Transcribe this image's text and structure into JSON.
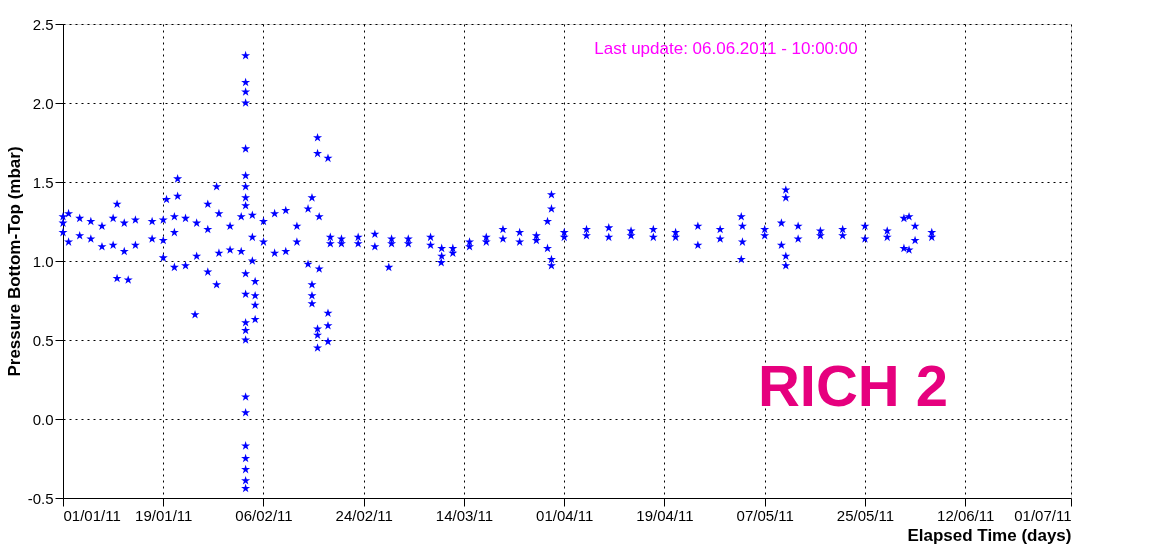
{
  "chart_data": {
    "type": "scatter",
    "xlabel": "Elapsed Time (days)",
    "ylabel": "Pressure Bottom-Top (mbar)",
    "annotations": [
      "Last update: 06.06.2011 - 10:00:00",
      "RICH 2"
    ],
    "xlim": [
      "2011-01-01",
      "2011-07-01"
    ],
    "xticks": [
      {
        "value": "2011-01-01",
        "label": "01/01/11"
      },
      {
        "value": "2011-01-19",
        "label": "19/01/11"
      },
      {
        "value": "2011-02-06",
        "label": "06/02/11"
      },
      {
        "value": "2011-02-24",
        "label": "24/02/11"
      },
      {
        "value": "2011-03-14",
        "label": "14/03/11"
      },
      {
        "value": "2011-04-01",
        "label": "01/04/11"
      },
      {
        "value": "2011-04-19",
        "label": "19/04/11"
      },
      {
        "value": "2011-05-07",
        "label": "07/05/11"
      },
      {
        "value": "2011-05-25",
        "label": "25/05/11"
      },
      {
        "value": "2011-06-12",
        "label": "12/06/11"
      },
      {
        "value": "2011-07-01",
        "label": "01/07/11"
      }
    ],
    "ylim": [
      -0.5,
      2.5
    ],
    "yticks": [
      {
        "value": -0.5,
        "label": "-0.5"
      },
      {
        "value": 0,
        "label": "0.0"
      },
      {
        "value": 0.5,
        "label": "0.5"
      },
      {
        "value": 1,
        "label": "1.0"
      },
      {
        "value": 1.5,
        "label": "1.5"
      },
      {
        "value": 2,
        "label": "2.0"
      },
      {
        "value": 2.5,
        "label": "2.5"
      }
    ],
    "grid": true,
    "marker": "star",
    "legend": false,
    "series": [
      {
        "color": "#0000ff",
        "x": [
          "2011-01-01",
          "2011-01-01",
          "2011-01-01",
          "2011-01-02",
          "2011-01-02",
          "2011-01-04",
          "2011-01-04",
          "2011-01-06",
          "2011-01-06",
          "2011-01-08",
          "2011-01-08",
          "2011-01-10",
          "2011-01-10",
          "2011-01-12",
          "2011-01-12",
          "2011-01-14",
          "2011-01-14",
          "2011-01-17",
          "2011-01-17",
          "2011-01-19",
          "2011-01-19",
          "2011-01-19",
          "2011-01-21",
          "2011-01-21",
          "2011-01-21",
          "2011-01-23",
          "2011-01-23",
          "2011-01-25",
          "2011-01-25",
          "2011-01-27",
          "2011-01-27",
          "2011-01-27",
          "2011-01-29",
          "2011-01-29",
          "2011-01-31",
          "2011-01-31",
          "2011-02-02",
          "2011-02-02",
          "2011-02-04",
          "2011-02-04",
          "2011-02-04",
          "2011-02-06",
          "2011-02-06",
          "2011-02-08",
          "2011-02-08",
          "2011-02-10",
          "2011-02-10",
          "2011-02-12",
          "2011-02-12",
          "2011-02-14",
          "2011-02-14",
          "2011-02-16",
          "2011-02-16",
          "2011-02-18",
          "2011-02-18",
          "2011-02-20",
          "2011-02-20",
          "2011-02-23",
          "2011-02-23",
          "2011-02-26",
          "2011-02-26",
          "2011-03-01",
          "2011-03-01",
          "2011-03-04",
          "2011-03-04",
          "2011-03-08",
          "2011-03-08",
          "2011-03-10",
          "2011-03-10",
          "2011-03-12",
          "2011-03-12",
          "2011-03-15",
          "2011-03-15",
          "2011-03-18",
          "2011-03-18",
          "2011-03-21",
          "2011-03-21",
          "2011-03-24",
          "2011-03-24",
          "2011-03-27",
          "2011-03-27",
          "2011-03-29",
          "2011-03-29",
          "2011-04-01",
          "2011-04-01",
          "2011-04-05",
          "2011-04-05",
          "2011-04-09",
          "2011-04-09",
          "2011-04-13",
          "2011-04-13",
          "2011-04-17",
          "2011-04-17",
          "2011-04-21",
          "2011-04-21",
          "2011-04-25",
          "2011-04-25",
          "2011-04-29",
          "2011-04-29",
          "2011-05-03",
          "2011-05-03",
          "2011-05-07",
          "2011-05-07",
          "2011-05-10",
          "2011-05-10",
          "2011-05-13",
          "2011-05-13",
          "2011-05-17",
          "2011-05-17",
          "2011-05-21",
          "2011-05-21",
          "2011-05-25",
          "2011-05-25",
          "2011-05-29",
          "2011-05-29",
          "2011-06-01",
          "2011-06-01",
          "2011-06-03",
          "2011-06-03",
          "2011-06-06",
          "2011-06-06",
          "2011-01-10T17:00",
          "2011-01-10T17:00",
          "2011-01-12T17:00",
          "2011-01-19T14:00",
          "2011-01-21T14:00",
          "2011-01-21T14:00",
          "2011-01-24T17:00",
          "2011-01-28T14:00",
          "2011-01-28T14:00",
          "2011-02-02T19:00",
          "2011-02-02T19:00",
          "2011-02-02T19:00",
          "2011-02-02T19:00",
          "2011-02-02T19:00",
          "2011-02-02T19:00",
          "2011-02-02T19:00",
          "2011-02-02T19:00",
          "2011-02-02T19:00",
          "2011-02-02T19:00",
          "2011-02-02T19:00",
          "2011-02-02T19:00",
          "2011-02-02T19:00",
          "2011-02-02T19:00",
          "2011-02-02T19:00",
          "2011-02-02T19:00",
          "2011-02-02T19:00",
          "2011-02-02T19:00",
          "2011-02-02T19:00",
          "2011-02-02T19:00",
          "2011-02-02T19:00",
          "2011-02-04T12:00",
          "2011-02-04T12:00",
          "2011-02-04T12:00",
          "2011-02-04T12:00",
          "2011-02-14T17:00",
          "2011-02-14T17:00",
          "2011-02-14T17:00",
          "2011-02-14T17:00",
          "2011-02-15T17:00",
          "2011-02-15T17:00",
          "2011-02-15T17:00",
          "2011-02-15T17:00",
          "2011-02-15T17:00",
          "2011-02-17T14:00",
          "2011-02-17T14:00",
          "2011-02-17T14:00",
          "2011-02-17T14:00",
          "2011-02-28T12:00",
          "2011-03-09T22:00",
          "2011-03-29T17:00",
          "2011-03-29T17:00",
          "2011-03-29T17:00",
          "2011-03-29T17:00",
          "2011-05-02T19:00",
          "2011-05-02T19:00",
          "2011-05-10T19:00",
          "2011-05-10T19:00",
          "2011-05-10T19:00",
          "2011-05-10T19:00",
          "2011-06-01T22:00",
          "2011-06-01T22:00"
        ],
        "values": [
          1.28,
          1.18,
          1.24,
          1.3,
          1.12,
          1.27,
          1.16,
          1.25,
          1.14,
          1.22,
          1.09,
          1.27,
          1.1,
          1.24,
          1.06,
          1.26,
          1.1,
          1.25,
          1.14,
          1.26,
          1.02,
          1.13,
          1.28,
          0.96,
          1.18,
          1.27,
          0.97,
          1.24,
          1.03,
          1.36,
          0.93,
          1.2,
          1.3,
          1.05,
          1.22,
          1.07,
          1.28,
          1.06,
          1.29,
          1.0,
          1.15,
          1.25,
          1.12,
          1.3,
          1.05,
          1.32,
          1.06,
          1.22,
          1.12,
          1.33,
          0.98,
          1.28,
          0.95,
          1.15,
          1.11,
          1.14,
          1.11,
          1.15,
          1.11,
          1.17,
          1.09,
          1.14,
          1.11,
          1.14,
          1.11,
          1.15,
          1.1,
          1.08,
          1.03,
          1.08,
          1.05,
          1.12,
          1.09,
          1.15,
          1.12,
          1.2,
          1.14,
          1.18,
          1.12,
          1.16,
          1.13,
          1.25,
          1.08,
          1.18,
          1.15,
          1.2,
          1.16,
          1.21,
          1.15,
          1.19,
          1.16,
          1.2,
          1.15,
          1.18,
          1.15,
          1.22,
          1.1,
          1.2,
          1.14,
          1.22,
          1.12,
          1.2,
          1.16,
          1.24,
          1.1,
          1.22,
          1.14,
          1.19,
          1.16,
          1.2,
          1.16,
          1.22,
          1.14,
          1.19,
          1.15,
          1.27,
          1.08,
          1.22,
          1.13,
          1.18,
          1.15,
          0.89,
          1.36,
          0.88,
          1.39,
          1.52,
          1.41,
          0.66,
          1.47,
          0.85,
          2.3,
          2.13,
          2.07,
          2.0,
          1.71,
          1.54,
          1.47,
          1.4,
          1.35,
          0.92,
          0.79,
          0.61,
          0.56,
          0.5,
          0.14,
          0.04,
          -0.17,
          -0.25,
          -0.32,
          -0.39,
          -0.44,
          0.87,
          0.78,
          0.72,
          0.63,
          1.4,
          0.85,
          0.78,
          0.73,
          1.78,
          1.68,
          0.57,
          0.53,
          0.45,
          1.65,
          0.67,
          0.59,
          0.49,
          0.96,
          0.99,
          1.42,
          1.33,
          0.97,
          1.01,
          1.28,
          1.01,
          1.45,
          1.4,
          1.03,
          0.97,
          1.28,
          1.07
        ]
      }
    ]
  }
}
